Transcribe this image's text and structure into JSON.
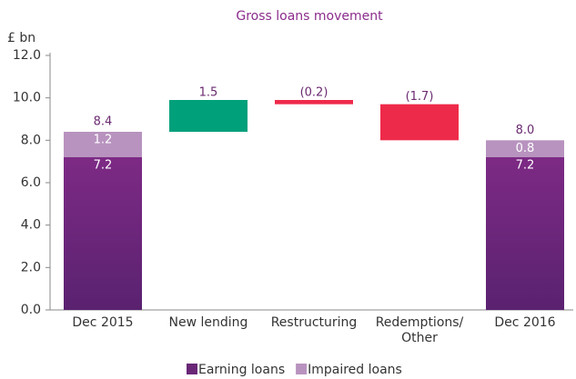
{
  "chart_data": {
    "type": "waterfall",
    "title": "Gross loans movement",
    "y_label": "£ bn",
    "categories": [
      "Dec 2015",
      "New lending",
      "Restructuring",
      "Redemptions/ Other",
      "Dec 2016"
    ],
    "series": [
      {
        "name": "Earning loans",
        "color": "#6a2677",
        "values": [
          7.2,
          null,
          null,
          null,
          7.2
        ]
      },
      {
        "name": "Impaired loans",
        "color": "#b893bf",
        "values": [
          1.2,
          null,
          null,
          null,
          0.8
        ]
      }
    ],
    "totals": {
      "values": [
        8.4,
        null,
        null,
        null,
        8.0
      ],
      "value_labels": [
        null,
        null,
        null,
        null,
        "8.0"
      ]
    },
    "changes": {
      "values": [
        null,
        1.5,
        -0.2,
        -1.7,
        null
      ],
      "value_labels": [
        null,
        null,
        "(0.2)",
        "(1.7)",
        null
      ],
      "increase_color": "#00a07b",
      "decrease_color": "#ee2a4a"
    },
    "ylim": [
      0,
      12
    ],
    "yticks": [
      {
        "value": 0,
        "label": "0.0"
      },
      {
        "value": 2,
        "label": "2.0"
      },
      {
        "value": 4,
        "label": "4.0"
      },
      {
        "value": 6,
        "label": "6.0"
      },
      {
        "value": 8,
        "label": "8.0"
      },
      {
        "value": 10,
        "label": "10.0"
      },
      {
        "value": 12,
        "label": "12.0"
      }
    ]
  }
}
